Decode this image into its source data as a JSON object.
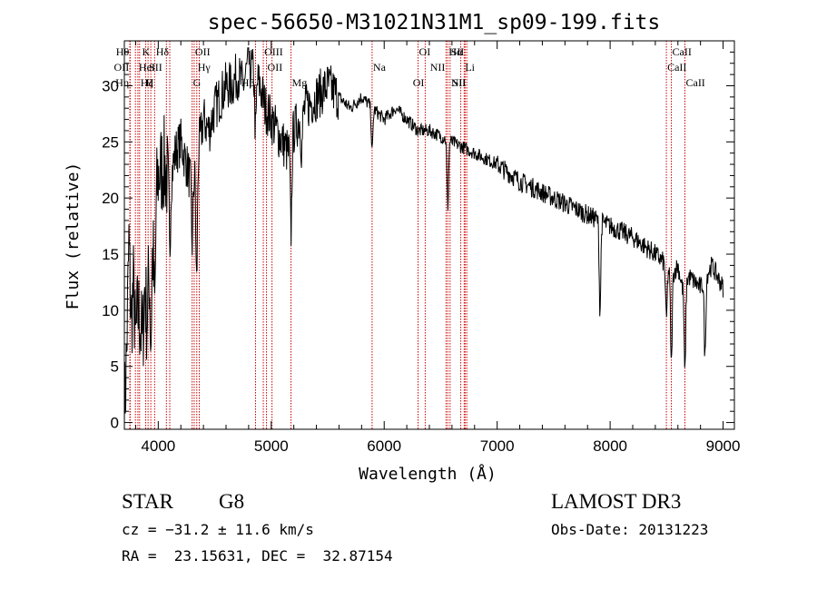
{
  "chart_data": {
    "type": "line",
    "title": "spec-56650-M31021N31M1_sp09-199.fits",
    "xlabel": "Wavelength (Å)",
    "ylabel": "Flux (relative)",
    "xlim": [
      3700,
      9100
    ],
    "ylim": [
      -0.6,
      34
    ],
    "xticks": [
      4000,
      5000,
      6000,
      7000,
      8000,
      9000
    ],
    "yticks": [
      0,
      5,
      10,
      15,
      20,
      25,
      30
    ],
    "grid": false,
    "line_color": "#000000",
    "marker_color": "#cc0000",
    "spectrum": {
      "x": [
        3700,
        3720,
        3740,
        3760,
        3780,
        3800,
        3820,
        3840,
        3860,
        3880,
        3900,
        3920,
        3940,
        3960,
        3980,
        4000,
        4050,
        4100,
        4150,
        4200,
        4250,
        4300,
        4350,
        4400,
        4450,
        4500,
        4550,
        4600,
        4650,
        4700,
        4750,
        4800,
        4850,
        4900,
        4950,
        5000,
        5050,
        5100,
        5150,
        5200,
        5250,
        5300,
        5400,
        5500,
        5600,
        5700,
        5800,
        5900,
        6000,
        6100,
        6200,
        6300,
        6400,
        6500,
        6600,
        6700,
        6800,
        6900,
        7000,
        7200,
        7400,
        7600,
        7800,
        7900,
        8000,
        8200,
        8400,
        8500,
        8540,
        8600,
        8640,
        8700,
        8800,
        8900,
        9000
      ],
      "y": [
        0.5,
        6,
        16,
        9,
        12,
        7,
        10,
        9,
        7,
        12,
        9,
        14,
        17,
        15,
        20,
        22,
        23,
        21,
        24,
        25,
        23,
        21,
        24,
        27,
        26,
        28,
        29,
        30,
        30,
        31,
        30,
        32,
        31,
        30,
        28,
        27,
        26,
        25,
        24,
        26,
        27,
        28,
        29,
        30,
        29,
        28,
        29,
        28,
        27,
        28,
        27,
        26,
        26,
        25.5,
        25,
        24.5,
        24,
        23.5,
        23,
        21.5,
        20.5,
        19.5,
        18.5,
        18,
        17.5,
        16.5,
        15,
        14,
        13,
        14,
        12,
        13,
        12,
        14,
        12
      ]
    },
    "absorption": [
      {
        "x": 3935,
        "depth": 9
      },
      {
        "x": 3970,
        "depth": 7
      },
      {
        "x": 4101,
        "depth": 6
      },
      {
        "x": 4300,
        "depth": 5
      },
      {
        "x": 4340,
        "depth": 11
      },
      {
        "x": 4861,
        "depth": 5
      },
      {
        "x": 5175,
        "depth": 8
      },
      {
        "x": 5270,
        "depth": 3
      },
      {
        "x": 5893,
        "depth": 4
      },
      {
        "x": 6563,
        "depth": 6
      },
      {
        "x": 7910,
        "depth": 8
      },
      {
        "x": 8498,
        "depth": 5
      },
      {
        "x": 8542,
        "depth": 8
      },
      {
        "x": 8662,
        "depth": 8
      },
      {
        "x": 8840,
        "depth": 7
      }
    ],
    "lines": [
      {
        "x": 3750,
        "label": "Hθ",
        "row": 1,
        "side": "left"
      },
      {
        "x": 3750,
        "label": "OII",
        "row": 2,
        "side": "left"
      },
      {
        "x": 3750,
        "label": "Hη",
        "row": 3,
        "side": "left"
      },
      {
        "x": 3798,
        "label": "",
        "row": 0,
        "side": "right"
      },
      {
        "x": 3820,
        "label": "HeI",
        "row": 2,
        "side": "right"
      },
      {
        "x": 3835,
        "label": "Hζ",
        "row": 3,
        "side": "right"
      },
      {
        "x": 3889,
        "label": "",
        "row": 0,
        "side": "right"
      },
      {
        "x": 3910,
        "label": "SII",
        "row": 2,
        "side": "right"
      },
      {
        "x": 3934,
        "label": "K",
        "row": 1,
        "side": "left"
      },
      {
        "x": 3968,
        "label": "H",
        "row": 3,
        "side": "left"
      },
      {
        "x": 4072,
        "label": "",
        "row": 0,
        "side": "right"
      },
      {
        "x": 4102,
        "label": "Hδ",
        "row": 1,
        "side": "left"
      },
      {
        "x": 4300,
        "label": "G",
        "row": 3,
        "side": "right"
      },
      {
        "x": 4318,
        "label": "OII",
        "row": 1,
        "side": "right"
      },
      {
        "x": 4341,
        "label": "Hγ",
        "row": 2,
        "side": "right"
      },
      {
        "x": 4363,
        "label": "",
        "row": 0,
        "side": "right"
      },
      {
        "x": 4861,
        "label": "Hβ",
        "row": 3,
        "side": "left"
      },
      {
        "x": 4930,
        "label": "OIII",
        "row": 1,
        "side": "right"
      },
      {
        "x": 4958,
        "label": "OII",
        "row": 2,
        "side": "right"
      },
      {
        "x": 5007,
        "label": "",
        "row": 0,
        "side": "right"
      },
      {
        "x": 5175,
        "label": "Mg",
        "row": 3,
        "side": "right"
      },
      {
        "x": 5893,
        "label": "Na",
        "row": 2,
        "side": "right"
      },
      {
        "x": 6300,
        "label": "OI",
        "row": 1,
        "side": "right"
      },
      {
        "x": 6363,
        "label": "OI",
        "row": 3,
        "side": "left"
      },
      {
        "x": 6548,
        "label": "NII",
        "row": 2,
        "side": "left"
      },
      {
        "x": 6563,
        "label": "Hα",
        "row": 1,
        "side": "right"
      },
      {
        "x": 6583,
        "label": "NII",
        "row": 3,
        "side": "right"
      },
      {
        "x": 6678,
        "label": "",
        "row": 0,
        "side": "right"
      },
      {
        "x": 6708,
        "label": "Li",
        "row": 2,
        "side": "right"
      },
      {
        "x": 6716,
        "label": "SII",
        "row": 1,
        "side": "left"
      },
      {
        "x": 6731,
        "label": "SII",
        "row": 3,
        "side": "left"
      },
      {
        "x": 8498,
        "label": "CaII",
        "row": 2,
        "side": "right"
      },
      {
        "x": 8542,
        "label": "CaII",
        "row": 1,
        "side": "right"
      },
      {
        "x": 8662,
        "label": "CaII",
        "row": 3,
        "side": "right"
      }
    ]
  },
  "info": {
    "class": "STAR",
    "subclass": "G8",
    "survey": "LAMOST DR3",
    "cz": "cz = −31.2 ± 11.6 km/s",
    "obs_date": "Obs-Date: 20131223",
    "radec": "RA =  23.15631, DEC =  32.87154"
  }
}
